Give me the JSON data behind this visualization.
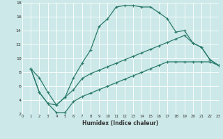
{
  "xlabel": "Humidex (Indice chaleur)",
  "bg_color": "#cce8e8",
  "grid_color": "#ffffff",
  "line_color": "#2a7a6a",
  "xlim": [
    0,
    23
  ],
  "ylim": [
    2,
    18
  ],
  "xticks": [
    0,
    1,
    2,
    3,
    4,
    5,
    6,
    7,
    8,
    9,
    10,
    11,
    12,
    13,
    14,
    15,
    16,
    17,
    18,
    19,
    20,
    21,
    22,
    23
  ],
  "yticks": [
    2,
    4,
    6,
    8,
    10,
    12,
    14,
    16,
    18
  ],
  "curve1_x": [
    1,
    2,
    3,
    4,
    5,
    6,
    7,
    8,
    9,
    10,
    11,
    12,
    13,
    14,
    15,
    16,
    17,
    18,
    19,
    20,
    21,
    22,
    23
  ],
  "curve1_y": [
    8.5,
    7.2,
    5.1,
    3.3,
    4.4,
    7.2,
    9.3,
    11.2,
    14.6,
    15.7,
    17.4,
    17.6,
    17.6,
    17.4,
    17.4,
    16.6,
    15.7,
    13.8,
    14.0,
    12.2,
    11.6,
    9.8,
    9.0
  ],
  "curve2_x": [
    1,
    2,
    3,
    4,
    5,
    6,
    7,
    8,
    9,
    10,
    11,
    12,
    13,
    14,
    15,
    16,
    17,
    18,
    19,
    20,
    21,
    22,
    23
  ],
  "curve2_y": [
    8.5,
    5.1,
    3.5,
    3.3,
    4.4,
    5.5,
    7.1,
    7.8,
    8.3,
    8.8,
    9.3,
    9.8,
    10.3,
    10.8,
    11.3,
    11.8,
    12.3,
    12.8,
    13.3,
    12.2,
    11.6,
    9.8,
    9.0
  ],
  "curve3_x": [
    1,
    2,
    3,
    4,
    5,
    6,
    7,
    8,
    9,
    10,
    11,
    12,
    13,
    14,
    15,
    16,
    17,
    18,
    19,
    20,
    21,
    22,
    23
  ],
  "curve3_y": [
    8.5,
    5.1,
    3.5,
    2.2,
    2.2,
    3.8,
    4.5,
    5.0,
    5.5,
    6.0,
    6.5,
    7.0,
    7.5,
    8.0,
    8.5,
    9.0,
    9.5,
    9.5,
    9.5,
    9.5,
    9.5,
    9.5,
    9.0
  ]
}
